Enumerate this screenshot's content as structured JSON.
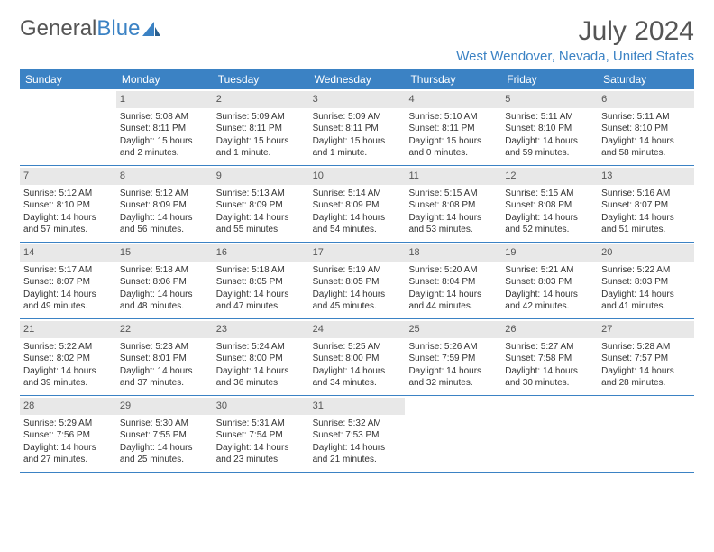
{
  "brand": {
    "part1": "General",
    "part2": "Blue"
  },
  "title": "July 2024",
  "location": "West Wendover, Nevada, United States",
  "colors": {
    "accent": "#3b82c4",
    "header_text": "#555555",
    "body_text": "#333333",
    "day_number_bg": "#e8e8e8"
  },
  "day_names": [
    "Sunday",
    "Monday",
    "Tuesday",
    "Wednesday",
    "Thursday",
    "Friday",
    "Saturday"
  ],
  "weeks": [
    [
      {
        "n": "",
        "lines": []
      },
      {
        "n": "1",
        "lines": [
          "Sunrise: 5:08 AM",
          "Sunset: 8:11 PM",
          "Daylight: 15 hours",
          "and 2 minutes."
        ]
      },
      {
        "n": "2",
        "lines": [
          "Sunrise: 5:09 AM",
          "Sunset: 8:11 PM",
          "Daylight: 15 hours",
          "and 1 minute."
        ]
      },
      {
        "n": "3",
        "lines": [
          "Sunrise: 5:09 AM",
          "Sunset: 8:11 PM",
          "Daylight: 15 hours",
          "and 1 minute."
        ]
      },
      {
        "n": "4",
        "lines": [
          "Sunrise: 5:10 AM",
          "Sunset: 8:11 PM",
          "Daylight: 15 hours",
          "and 0 minutes."
        ]
      },
      {
        "n": "5",
        "lines": [
          "Sunrise: 5:11 AM",
          "Sunset: 8:10 PM",
          "Daylight: 14 hours",
          "and 59 minutes."
        ]
      },
      {
        "n": "6",
        "lines": [
          "Sunrise: 5:11 AM",
          "Sunset: 8:10 PM",
          "Daylight: 14 hours",
          "and 58 minutes."
        ]
      }
    ],
    [
      {
        "n": "7",
        "lines": [
          "Sunrise: 5:12 AM",
          "Sunset: 8:10 PM",
          "Daylight: 14 hours",
          "and 57 minutes."
        ]
      },
      {
        "n": "8",
        "lines": [
          "Sunrise: 5:12 AM",
          "Sunset: 8:09 PM",
          "Daylight: 14 hours",
          "and 56 minutes."
        ]
      },
      {
        "n": "9",
        "lines": [
          "Sunrise: 5:13 AM",
          "Sunset: 8:09 PM",
          "Daylight: 14 hours",
          "and 55 minutes."
        ]
      },
      {
        "n": "10",
        "lines": [
          "Sunrise: 5:14 AM",
          "Sunset: 8:09 PM",
          "Daylight: 14 hours",
          "and 54 minutes."
        ]
      },
      {
        "n": "11",
        "lines": [
          "Sunrise: 5:15 AM",
          "Sunset: 8:08 PM",
          "Daylight: 14 hours",
          "and 53 minutes."
        ]
      },
      {
        "n": "12",
        "lines": [
          "Sunrise: 5:15 AM",
          "Sunset: 8:08 PM",
          "Daylight: 14 hours",
          "and 52 minutes."
        ]
      },
      {
        "n": "13",
        "lines": [
          "Sunrise: 5:16 AM",
          "Sunset: 8:07 PM",
          "Daylight: 14 hours",
          "and 51 minutes."
        ]
      }
    ],
    [
      {
        "n": "14",
        "lines": [
          "Sunrise: 5:17 AM",
          "Sunset: 8:07 PM",
          "Daylight: 14 hours",
          "and 49 minutes."
        ]
      },
      {
        "n": "15",
        "lines": [
          "Sunrise: 5:18 AM",
          "Sunset: 8:06 PM",
          "Daylight: 14 hours",
          "and 48 minutes."
        ]
      },
      {
        "n": "16",
        "lines": [
          "Sunrise: 5:18 AM",
          "Sunset: 8:05 PM",
          "Daylight: 14 hours",
          "and 47 minutes."
        ]
      },
      {
        "n": "17",
        "lines": [
          "Sunrise: 5:19 AM",
          "Sunset: 8:05 PM",
          "Daylight: 14 hours",
          "and 45 minutes."
        ]
      },
      {
        "n": "18",
        "lines": [
          "Sunrise: 5:20 AM",
          "Sunset: 8:04 PM",
          "Daylight: 14 hours",
          "and 44 minutes."
        ]
      },
      {
        "n": "19",
        "lines": [
          "Sunrise: 5:21 AM",
          "Sunset: 8:03 PM",
          "Daylight: 14 hours",
          "and 42 minutes."
        ]
      },
      {
        "n": "20",
        "lines": [
          "Sunrise: 5:22 AM",
          "Sunset: 8:03 PM",
          "Daylight: 14 hours",
          "and 41 minutes."
        ]
      }
    ],
    [
      {
        "n": "21",
        "lines": [
          "Sunrise: 5:22 AM",
          "Sunset: 8:02 PM",
          "Daylight: 14 hours",
          "and 39 minutes."
        ]
      },
      {
        "n": "22",
        "lines": [
          "Sunrise: 5:23 AM",
          "Sunset: 8:01 PM",
          "Daylight: 14 hours",
          "and 37 minutes."
        ]
      },
      {
        "n": "23",
        "lines": [
          "Sunrise: 5:24 AM",
          "Sunset: 8:00 PM",
          "Daylight: 14 hours",
          "and 36 minutes."
        ]
      },
      {
        "n": "24",
        "lines": [
          "Sunrise: 5:25 AM",
          "Sunset: 8:00 PM",
          "Daylight: 14 hours",
          "and 34 minutes."
        ]
      },
      {
        "n": "25",
        "lines": [
          "Sunrise: 5:26 AM",
          "Sunset: 7:59 PM",
          "Daylight: 14 hours",
          "and 32 minutes."
        ]
      },
      {
        "n": "26",
        "lines": [
          "Sunrise: 5:27 AM",
          "Sunset: 7:58 PM",
          "Daylight: 14 hours",
          "and 30 minutes."
        ]
      },
      {
        "n": "27",
        "lines": [
          "Sunrise: 5:28 AM",
          "Sunset: 7:57 PM",
          "Daylight: 14 hours",
          "and 28 minutes."
        ]
      }
    ],
    [
      {
        "n": "28",
        "lines": [
          "Sunrise: 5:29 AM",
          "Sunset: 7:56 PM",
          "Daylight: 14 hours",
          "and 27 minutes."
        ]
      },
      {
        "n": "29",
        "lines": [
          "Sunrise: 5:30 AM",
          "Sunset: 7:55 PM",
          "Daylight: 14 hours",
          "and 25 minutes."
        ]
      },
      {
        "n": "30",
        "lines": [
          "Sunrise: 5:31 AM",
          "Sunset: 7:54 PM",
          "Daylight: 14 hours",
          "and 23 minutes."
        ]
      },
      {
        "n": "31",
        "lines": [
          "Sunrise: 5:32 AM",
          "Sunset: 7:53 PM",
          "Daylight: 14 hours",
          "and 21 minutes."
        ]
      },
      {
        "n": "",
        "lines": []
      },
      {
        "n": "",
        "lines": []
      },
      {
        "n": "",
        "lines": []
      }
    ]
  ]
}
